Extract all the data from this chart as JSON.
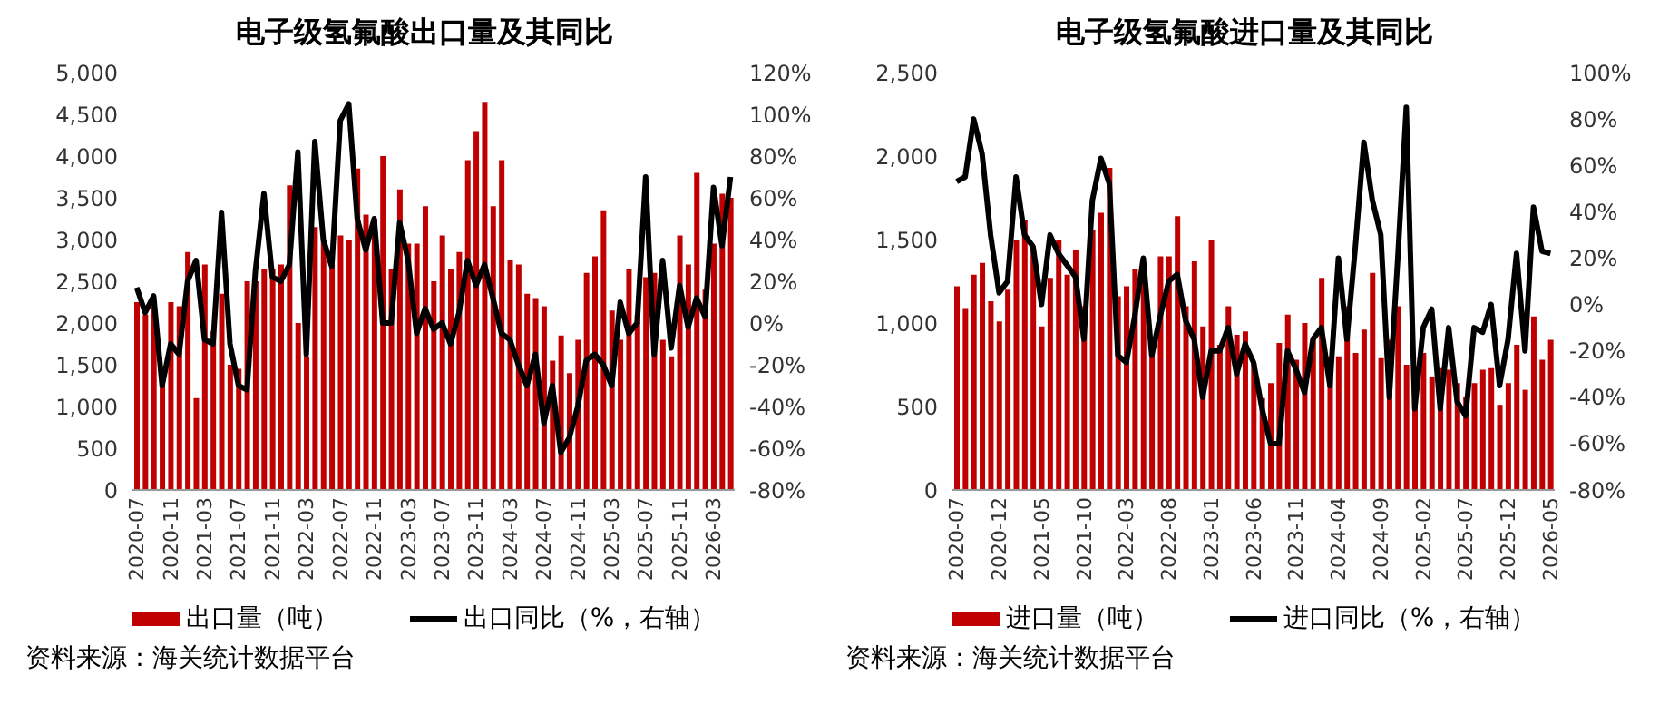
{
  "chart_data": [
    {
      "type": "bar",
      "title": "电子级氢氟酸出口量及其同比",
      "categories": [
        "2020-07",
        null,
        null,
        null,
        "2020-11",
        null,
        null,
        null,
        "2021-03",
        null,
        null,
        null,
        "2021-07",
        null,
        null,
        null,
        "2021-11",
        null,
        null,
        null,
        "2022-03",
        null,
        null,
        null,
        "2022-07",
        null,
        null,
        null,
        "2022-11",
        null,
        null,
        null,
        "2023-03",
        null,
        null,
        null,
        "2023-07",
        null,
        null,
        null,
        "2023-11",
        null,
        null,
        null,
        "2024-03",
        null,
        null,
        null,
        "2024-07",
        null,
        null,
        null,
        "2024-11",
        null,
        null,
        null,
        "2025-03",
        null,
        null,
        null,
        "2025-07",
        null,
        null,
        null,
        "2025-11",
        null,
        null,
        null,
        "2026-03",
        null,
        null
      ],
      "series": [
        {
          "name": "出口量（吨）",
          "color": "#c00000",
          "values": [
            2250,
            2100,
            2200,
            1400,
            2250,
            2200,
            2850,
            1100,
            2700,
            1900,
            2350,
            1500,
            1450,
            2500,
            2500,
            2650,
            2650,
            2700,
            3650,
            2000,
            1600,
            3150,
            3000,
            2700,
            3050,
            3000,
            3850,
            3300,
            3250,
            4000,
            2650,
            3600,
            2950,
            2950,
            3400,
            2500,
            3050,
            2650,
            2850,
            3950,
            4300,
            4650,
            3400,
            3950,
            2750,
            2700,
            2350,
            2300,
            2200,
            1550,
            1850,
            1400,
            1800,
            2600,
            2800,
            3350,
            2150,
            1800,
            2650,
            2100,
            2550,
            2600,
            1800,
            1600,
            3050,
            2700,
            3800,
            2400,
            2950,
            3550,
            3500
          ]
        },
        {
          "name": "出口同比（%，右轴）",
          "type": "line",
          "axis": "y2",
          "color": "#000000",
          "values": [
            17,
            5,
            13,
            -30,
            -10,
            -15,
            20,
            30,
            -8,
            -10,
            53,
            -10,
            -30,
            -32,
            25,
            62,
            22,
            20,
            28,
            82,
            -15,
            87,
            40,
            27,
            97,
            105,
            50,
            35,
            50,
            0,
            0,
            48,
            30,
            -5,
            7,
            -3,
            0,
            -10,
            5,
            30,
            18,
            28,
            12,
            -5,
            -8,
            -20,
            -30,
            -15,
            -48,
            -30,
            -62,
            -55,
            -40,
            -18,
            -15,
            -20,
            -30,
            10,
            -5,
            0,
            70,
            -15,
            30,
            -12,
            18,
            -2,
            12,
            3,
            65,
            37,
            70
          ]
        }
      ],
      "ylim": [
        0,
        5000
      ],
      "yticks": [
        {
          "value": 0,
          "label": "0"
        },
        {
          "value": 500,
          "label": "500"
        },
        {
          "value": 1000,
          "label": "1,000"
        },
        {
          "value": 1500,
          "label": "1,500"
        },
        {
          "value": 2000,
          "label": "2,000"
        },
        {
          "value": 2500,
          "label": "2,500"
        },
        {
          "value": 3000,
          "label": "3,000"
        },
        {
          "value": 3500,
          "label": "3,500"
        },
        {
          "value": 4000,
          "label": "4,000"
        },
        {
          "value": 4500,
          "label": "4,500"
        },
        {
          "value": 5000,
          "label": "5,000"
        }
      ],
      "y2lim": [
        -80,
        120
      ],
      "y2ticks": [
        {
          "value": -80,
          "label": "-80%"
        },
        {
          "value": -60,
          "label": "-60%"
        },
        {
          "value": -40,
          "label": "-40%"
        },
        {
          "value": -20,
          "label": "-20%"
        },
        {
          "value": 0,
          "label": "0%"
        },
        {
          "value": 20,
          "label": "20%"
        },
        {
          "value": 40,
          "label": "40%"
        },
        {
          "value": 60,
          "label": "60%"
        },
        {
          "value": 80,
          "label": "80%"
        },
        {
          "value": 100,
          "label": "100%"
        },
        {
          "value": 120,
          "label": "120%"
        }
      ],
      "legend": "bottom",
      "marker": "none",
      "annotations": [
        "资料来源：海关统计数据平台"
      ]
    },
    {
      "type": "bar",
      "title": "电子级氢氟酸进口量及其同比",
      "categories": [
        "2020-07",
        null,
        null,
        null,
        null,
        "2020-12",
        null,
        null,
        null,
        null,
        "2021-05",
        null,
        null,
        null,
        null,
        "2021-10",
        null,
        null,
        null,
        null,
        "2022-03",
        null,
        null,
        null,
        null,
        "2022-08",
        null,
        null,
        null,
        null,
        "2023-01",
        null,
        null,
        null,
        null,
        "2023-06",
        null,
        null,
        null,
        null,
        "2023-11",
        null,
        null,
        null,
        null,
        "2024-04",
        null,
        null,
        null,
        null,
        "2024-09",
        null,
        null,
        null,
        null,
        "2025-02",
        null,
        null,
        null,
        null,
        "2025-07",
        null,
        null,
        null,
        null,
        "2025-12",
        null,
        null,
        null,
        null,
        "2026-05"
      ],
      "series": [
        {
          "name": "进口量（吨）",
          "color": "#c00000",
          "values": [
            1220,
            1090,
            1290,
            1360,
            1130,
            1010,
            1200,
            1500,
            1620,
            1450,
            980,
            1270,
            1500,
            1290,
            1440,
            1100,
            1560,
            1660,
            1930,
            1160,
            1220,
            1320,
            1300,
            880,
            1400,
            1400,
            1640,
            1100,
            1370,
            980,
            1500,
            870,
            1100,
            930,
            950,
            760,
            550,
            640,
            880,
            1050,
            780,
            1000,
            900,
            1270,
            800,
            800,
            1100,
            820,
            960,
            1300,
            790,
            900,
            1100,
            750,
            740,
            820,
            680,
            730,
            720,
            640,
            560,
            640,
            720,
            730,
            510,
            640,
            870,
            600,
            1040,
            780,
            900
          ]
        },
        {
          "name": "进口同比（%，右轴）",
          "type": "line",
          "axis": "y2",
          "color": "#000000",
          "values": [
            53,
            55,
            80,
            65,
            30,
            5,
            10,
            55,
            30,
            25,
            0,
            30,
            22,
            17,
            12,
            -15,
            45,
            63,
            52,
            -22,
            -25,
            -5,
            20,
            -22,
            -5,
            10,
            13,
            -7,
            -15,
            -40,
            -20,
            -20,
            -10,
            -30,
            -17,
            -25,
            -45,
            -60,
            -60,
            -20,
            -28,
            -38,
            -15,
            -10,
            -35,
            20,
            -15,
            25,
            70,
            45,
            30,
            -40,
            20,
            85,
            -45,
            -10,
            -2,
            -45,
            -10,
            -42,
            -48,
            -10,
            -12,
            0,
            -35,
            -15,
            22,
            -20,
            42,
            23,
            22
          ]
        }
      ],
      "ylim": [
        0,
        2500
      ],
      "yticks": [
        {
          "value": 0,
          "label": "0"
        },
        {
          "value": 500,
          "label": "500"
        },
        {
          "value": 1000,
          "label": "1,000"
        },
        {
          "value": 1500,
          "label": "1,500"
        },
        {
          "value": 2000,
          "label": "2,000"
        },
        {
          "value": 2500,
          "label": "2,500"
        }
      ],
      "y2lim": [
        -80,
        100
      ],
      "y2ticks": [
        {
          "value": -80,
          "label": "-80%"
        },
        {
          "value": -60,
          "label": "-60%"
        },
        {
          "value": -40,
          "label": "-40%"
        },
        {
          "value": -20,
          "label": "-20%"
        },
        {
          "value": 0,
          "label": "0%"
        },
        {
          "value": 20,
          "label": "20%"
        },
        {
          "value": 40,
          "label": "40%"
        },
        {
          "value": 60,
          "label": "60%"
        },
        {
          "value": 80,
          "label": "80%"
        },
        {
          "value": 100,
          "label": "100%"
        }
      ],
      "legend": "bottom",
      "marker": "none",
      "annotations": [
        "资料来源：海关统计数据平台"
      ]
    }
  ]
}
